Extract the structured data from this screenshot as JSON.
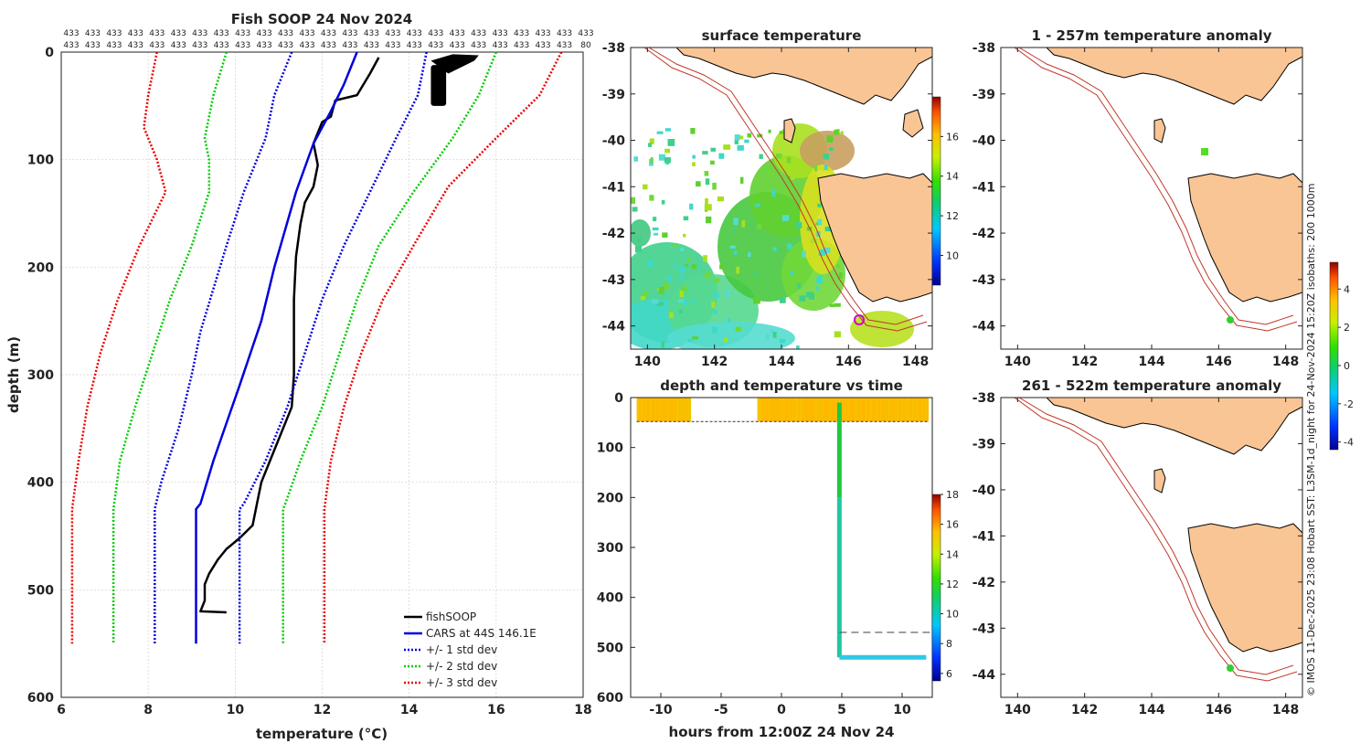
{
  "panels": {
    "profile": {
      "title": "Fish SOOP 24 Nov 2024"
    },
    "surface": {
      "title": "surface temperature"
    },
    "depth_time": {
      "title": "depth and temperature vs time"
    },
    "anomaly_shallow": {
      "title": "1 - 257m temperature anomaly"
    },
    "anomaly_deep": {
      "title": "261 - 522m temperature anomaly"
    }
  },
  "footer": {
    "caption": "© IMOS 11-Dec-2025 23:08 Hobart SST: L3SM-1d_night for 24-Nov-2024 15:20Z isobaths: 200  1000m"
  },
  "colors": {
    "fishsoop": "#000000",
    "cars": "#0000dd",
    "std1": "#0000dd",
    "std2": "#00cc00",
    "std3": "#ee0000",
    "land": "#f9c595",
    "isobath": "#c0392b",
    "vessel": "#cc00cc"
  },
  "count_rows": {
    "row1": [
      "433",
      "433",
      "433",
      "433",
      "433",
      "433",
      "433",
      "433",
      "433",
      "433",
      "433",
      "433",
      "433",
      "433",
      "433",
      "433",
      "433",
      "433",
      "433",
      "433",
      "433",
      "433",
      "433",
      "433",
      "433"
    ],
    "row2": [
      "433",
      "433",
      "433",
      "433",
      "433",
      "433",
      "433",
      "433",
      "433",
      "433",
      "433",
      "433",
      "433",
      "433",
      "433",
      "433",
      "433",
      "433",
      "433",
      "433",
      "433",
      "433",
      "433",
      "433",
      "80"
    ]
  },
  "chart_data": [
    {
      "type": "line",
      "title": "Fish SOOP 24 Nov 2024",
      "xlabel": "temperature (°C)",
      "ylabel": "depth (m)",
      "xlim": [
        6,
        18
      ],
      "ylim": [
        600,
        0
      ],
      "xticks": [
        "6",
        "8",
        "10",
        "12",
        "14",
        "16",
        "18"
      ],
      "yticks": [
        "0",
        "100",
        "200",
        "300",
        "400",
        "500",
        "600"
      ],
      "legend": [
        "fishSOOP",
        "CARS at 44S 146.1E",
        "+/- 1 std dev",
        "+/- 2 std dev",
        "+/- 3 std dev"
      ],
      "series": [
        {
          "name": "fishSOOP",
          "color": "#000000",
          "style": "solid",
          "width": 2.5,
          "points": [
            [
              13.3,
              5
            ],
            [
              13.1,
              20
            ],
            [
              12.8,
              40
            ],
            [
              12.3,
              45
            ],
            [
              12.2,
              60
            ],
            [
              12.0,
              65
            ],
            [
              11.9,
              75
            ],
            [
              11.8,
              85
            ],
            [
              11.85,
              95
            ],
            [
              11.9,
              105
            ],
            [
              11.8,
              125
            ],
            [
              11.6,
              140
            ],
            [
              11.5,
              160
            ],
            [
              11.4,
              190
            ],
            [
              11.35,
              230
            ],
            [
              11.35,
              270
            ],
            [
              11.35,
              300
            ],
            [
              11.3,
              330
            ],
            [
              11.0,
              360
            ],
            [
              10.8,
              380
            ],
            [
              10.6,
              400
            ],
            [
              10.5,
              420
            ],
            [
              10.4,
              440
            ],
            [
              10.1,
              452
            ],
            [
              9.8,
              462
            ],
            [
              9.6,
              472
            ],
            [
              9.4,
              485
            ],
            [
              9.3,
              495
            ],
            [
              9.3,
              510
            ],
            [
              9.2,
              520
            ],
            [
              9.8,
              521
            ]
          ]
        },
        {
          "name": "CARS at 44S 146.1E",
          "color": "#0000dd",
          "style": "solid",
          "width": 2.5,
          "points": [
            [
              12.8,
              0
            ],
            [
              12.5,
              30
            ],
            [
              12.2,
              55
            ],
            [
              11.8,
              85
            ],
            [
              11.4,
              130
            ],
            [
              10.9,
              200
            ],
            [
              10.6,
              250
            ],
            [
              10.1,
              310
            ],
            [
              9.8,
              345
            ],
            [
              9.5,
              380
            ],
            [
              9.2,
              420
            ],
            [
              9.1,
              425
            ],
            [
              9.1,
              550
            ]
          ]
        },
        {
          "name": "+1 std dev",
          "color": "#0000dd",
          "style": "dotted",
          "width": 2.5,
          "points": [
            [
              14.4,
              0
            ],
            [
              14.2,
              40
            ],
            [
              13.7,
              80
            ],
            [
              13.1,
              130
            ],
            [
              12.5,
              180
            ],
            [
              12.0,
              230
            ],
            [
              11.6,
              280
            ],
            [
              11.2,
              330
            ],
            [
              10.7,
              380
            ],
            [
              10.2,
              420
            ],
            [
              10.1,
              425
            ],
            [
              10.1,
              550
            ]
          ]
        },
        {
          "name": "-1 std dev",
          "color": "#0000dd",
          "style": "dotted",
          "width": 2.5,
          "points": [
            [
              11.3,
              0
            ],
            [
              10.9,
              40
            ],
            [
              10.7,
              80
            ],
            [
              10.2,
              130
            ],
            [
              9.8,
              180
            ],
            [
              9.5,
              220
            ],
            [
              9.2,
              260
            ],
            [
              9.0,
              300
            ],
            [
              8.7,
              350
            ],
            [
              8.3,
              400
            ],
            [
              8.15,
              425
            ],
            [
              8.15,
              550
            ]
          ]
        },
        {
          "name": "+2 std dev",
          "color": "#00cc00",
          "style": "dotted",
          "width": 2.5,
          "points": [
            [
              16.0,
              0
            ],
            [
              15.6,
              40
            ],
            [
              15.0,
              80
            ],
            [
              14.1,
              130
            ],
            [
              13.3,
              180
            ],
            [
              12.8,
              230
            ],
            [
              12.4,
              280
            ],
            [
              12.0,
              330
            ],
            [
              11.5,
              380
            ],
            [
              11.15,
              420
            ],
            [
              11.1,
              425
            ],
            [
              11.1,
              550
            ]
          ]
        },
        {
          "name": "-2 std dev",
          "color": "#00cc00",
          "style": "dotted",
          "width": 2.5,
          "points": [
            [
              9.8,
              0
            ],
            [
              9.5,
              40
            ],
            [
              9.3,
              80
            ],
            [
              9.4,
              100
            ],
            [
              9.4,
              130
            ],
            [
              9.0,
              180
            ],
            [
              8.5,
              230
            ],
            [
              8.1,
              280
            ],
            [
              7.7,
              330
            ],
            [
              7.35,
              380
            ],
            [
              7.2,
              425
            ],
            [
              7.2,
              550
            ]
          ]
        },
        {
          "name": "+3 std dev",
          "color": "#ee0000",
          "style": "dotted",
          "width": 2.5,
          "points": [
            [
              17.5,
              0
            ],
            [
              17.0,
              40
            ],
            [
              16.0,
              80
            ],
            [
              14.9,
              125
            ],
            [
              14.1,
              180
            ],
            [
              13.4,
              230
            ],
            [
              12.9,
              280
            ],
            [
              12.5,
              330
            ],
            [
              12.2,
              380
            ],
            [
              12.05,
              425
            ],
            [
              12.05,
              550
            ]
          ]
        },
        {
          "name": "-3 std dev",
          "color": "#ee0000",
          "style": "dotted",
          "width": 2.5,
          "points": [
            [
              8.2,
              0
            ],
            [
              8.0,
              40
            ],
            [
              7.9,
              70
            ],
            [
              8.2,
              100
            ],
            [
              8.4,
              130
            ],
            [
              7.8,
              180
            ],
            [
              7.3,
              230
            ],
            [
              6.9,
              280
            ],
            [
              6.6,
              330
            ],
            [
              6.4,
              380
            ],
            [
              6.25,
              425
            ],
            [
              6.25,
              550
            ]
          ]
        }
      ],
      "blob": {
        "name": "fishSOOP near-surface cluster",
        "xrange": [
          14.5,
          15.6
        ],
        "yrange": [
          2,
          50
        ]
      }
    },
    {
      "type": "scatter",
      "title": "depth and temperature vs time",
      "xlabel": "hours from 12:00Z 24 Nov 24",
      "ylabel": "",
      "xlim": [
        -12.5,
        12.5
      ],
      "ylim": [
        600,
        0
      ],
      "xticks": [
        "-10",
        "-5",
        "0",
        "5",
        "10"
      ],
      "yticks": [
        "0",
        "100",
        "200",
        "300",
        "400",
        "500",
        "600"
      ],
      "surface_band_1": {
        "x": [
          -12,
          -7.5
        ],
        "depth": [
          0,
          48
        ],
        "temp": 15.5
      },
      "surface_band_2": {
        "x": [
          -2,
          12.2
        ],
        "depth": [
          0,
          48
        ],
        "temp": 15.0
      },
      "dive": {
        "x": 4.8,
        "depth": [
          10,
          520
        ],
        "temp_top": 13.0,
        "temp_bottom": 9.2
      },
      "bottom_track": {
        "x": [
          4.8,
          12
        ],
        "depth": 520,
        "temp": 9.0
      },
      "dashed_surface": {
        "x": [
          -12,
          12.2
        ],
        "depth": 48
      },
      "dashed_bottom": {
        "x": [
          4.8,
          12.5
        ],
        "depth": 470
      }
    },
    {
      "type": "heatmap",
      "title": "surface temperature",
      "xlim": [
        139.5,
        148.5
      ],
      "ylim": [
        -44.5,
        -38
      ],
      "xticks": [
        "140",
        "142",
        "144",
        "146",
        "148"
      ],
      "yticks": [
        "-38",
        "-39",
        "-40",
        "-41",
        "-42",
        "-43",
        "-44"
      ],
      "colorbar": {
        "min": 8.5,
        "max": 18,
        "ticks": [
          "10",
          "12",
          "14",
          "16"
        ]
      }
    },
    {
      "type": "heatmap",
      "title": "1 - 257m temperature anomaly",
      "xlim": [
        139.5,
        148.5
      ],
      "ylim": [
        -44.5,
        -38
      ],
      "xticks": [
        "140",
        "142",
        "144",
        "146",
        "148"
      ],
      "yticks": [
        "-38",
        "-39",
        "-40",
        "-41",
        "-42",
        "-43",
        "-44"
      ]
    },
    {
      "type": "heatmap",
      "title": "261 - 522m temperature anomaly",
      "xlim": [
        139.5,
        148.5
      ],
      "ylim": [
        -44.5,
        -38
      ],
      "xticks": [
        "140",
        "142",
        "144",
        "146",
        "148"
      ],
      "yticks": [
        "-38",
        "-39",
        "-40",
        "-41",
        "-42",
        "-43",
        "-44"
      ]
    }
  ],
  "colorbars": {
    "depth_time": {
      "min": 5.5,
      "max": 18,
      "ticks": [
        "6",
        "8",
        "10",
        "12",
        "14",
        "16",
        "18"
      ]
    },
    "anomaly": {
      "min": -4.4,
      "max": 5.4,
      "ticks": [
        "-4",
        "-2",
        "0",
        "2",
        "4"
      ]
    }
  }
}
